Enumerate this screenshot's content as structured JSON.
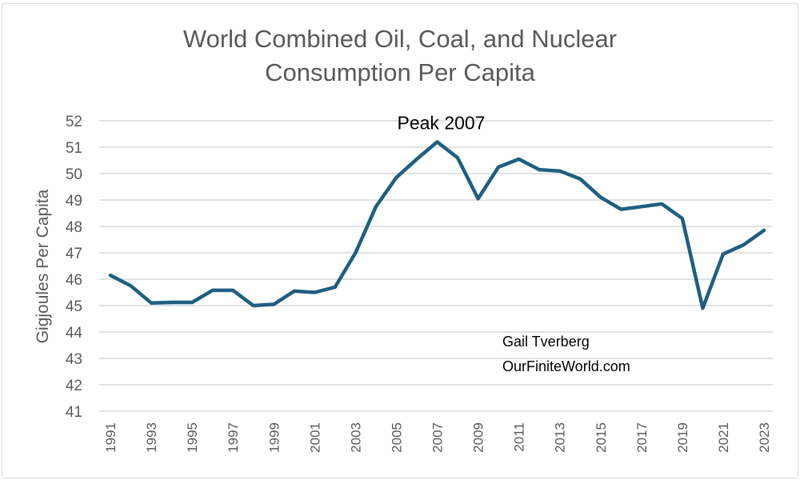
{
  "chart_data": {
    "type": "line",
    "title_line1": "World Combined Oil, Coal, and Nuclear",
    "title_line2": "Consumption Per Capita",
    "xlabel": "",
    "ylabel": "Gigjoules Per Capita",
    "ylim": [
      41,
      52
    ],
    "yticks": [
      41,
      42,
      43,
      44,
      45,
      46,
      47,
      48,
      49,
      50,
      51,
      52
    ],
    "xticks": [
      "1991",
      "1993",
      "1995",
      "1997",
      "1999",
      "2001",
      "2003",
      "2005",
      "2007",
      "2009",
      "2011",
      "2013",
      "2015",
      "2017",
      "2019",
      "2021",
      "2023"
    ],
    "grid": true,
    "legend": "none",
    "line_color": "#1f5f80",
    "series": [
      {
        "name": "Oil, Coal, and Nuclear per capita",
        "x": [
          1991,
          1992,
          1993,
          1994,
          1995,
          1996,
          1997,
          1998,
          1999,
          2000,
          2001,
          2002,
          2003,
          2004,
          2005,
          2006,
          2007,
          2008,
          2009,
          2010,
          2011,
          2012,
          2013,
          2014,
          2015,
          2016,
          2017,
          2018,
          2019,
          2020,
          2021,
          2022,
          2023
        ],
        "values": [
          46.15,
          45.75,
          45.1,
          45.12,
          45.12,
          45.58,
          45.58,
          45.0,
          45.05,
          45.55,
          45.5,
          45.7,
          47.0,
          48.75,
          49.85,
          50.55,
          51.2,
          50.6,
          49.05,
          50.25,
          50.55,
          50.15,
          50.1,
          49.8,
          49.1,
          48.65,
          48.75,
          48.85,
          48.3,
          44.9,
          46.95,
          47.3,
          47.85
        ]
      }
    ],
    "annotations": [
      {
        "text": "Peak 2007",
        "x": 2007,
        "y": 51.2
      }
    ],
    "credit_line1": "Gail Tverberg",
    "credit_line2": "OurFiniteWorld.com"
  }
}
